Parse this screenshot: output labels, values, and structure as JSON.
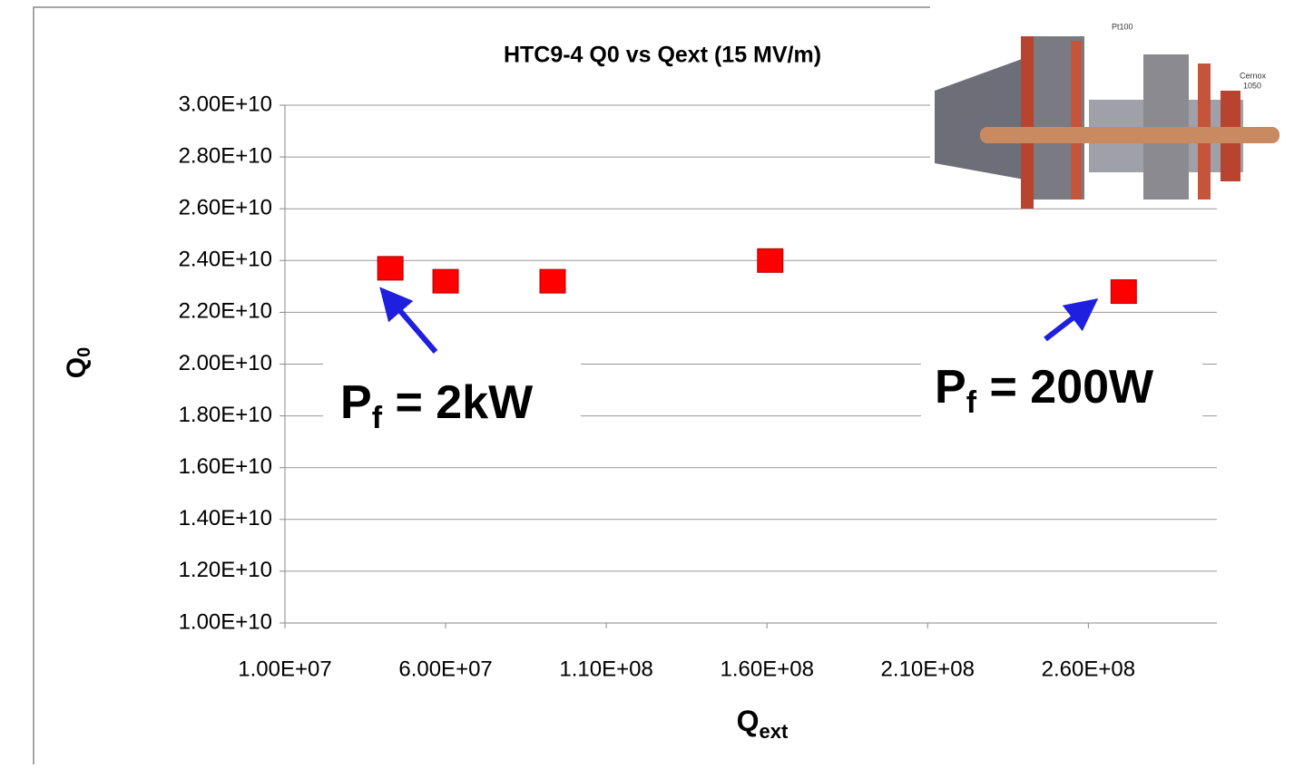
{
  "chart_data": {
    "type": "scatter",
    "title": "HTC9-4 Q0 vs Qext (15 MV/m)",
    "x_label": {
      "main": "Q",
      "sub": "ext"
    },
    "y_label": {
      "main": "Q",
      "sub": "0"
    },
    "x": [
      42800000,
      60000000,
      93300000,
      161000000,
      271000000
    ],
    "series": [
      {
        "color": "#ff0000",
        "values": [
          23700000000,
          23200000000,
          23200000000,
          24000000000,
          22800000000
        ]
      }
    ],
    "xlim": [
      10000000,
      300000000
    ],
    "ylim": [
      10000000000,
      30000000000
    ],
    "xticks": [
      {
        "value": 10000000,
        "label": "1.00E+07"
      },
      {
        "value": 60000000,
        "label": "6.00E+07"
      },
      {
        "value": 110000000,
        "label": "1.10E+08"
      },
      {
        "value": 160000000,
        "label": "1.60E+08"
      },
      {
        "value": 210000000,
        "label": "2.10E+08"
      },
      {
        "value": 260000000,
        "label": "2.60E+08"
      }
    ],
    "yticks": [
      {
        "value": 10000000000,
        "label": "1.00E+10"
      },
      {
        "value": 12000000000,
        "label": "1.20E+10"
      },
      {
        "value": 14000000000,
        "label": "1.40E+10"
      },
      {
        "value": 16000000000,
        "label": "1.60E+10"
      },
      {
        "value": 18000000000,
        "label": "1.80E+10"
      },
      {
        "value": 20000000000,
        "label": "2.00E+10"
      },
      {
        "value": 22000000000,
        "label": "2.20E+10"
      },
      {
        "value": 24000000000,
        "label": "2.40E+10"
      },
      {
        "value": 26000000000,
        "label": "2.60E+10"
      },
      {
        "value": 28000000000,
        "label": "2.80E+10"
      },
      {
        "value": 30000000000,
        "label": "3.00E+10"
      }
    ],
    "grid": true,
    "annotations": [
      {
        "main": "P",
        "sub": "f",
        "rest": " = 2kW"
      },
      {
        "main": "P",
        "sub": "f",
        "rest": " = 200W"
      }
    ],
    "inset_labels": [
      "Pt100",
      "Cernox",
      "1050"
    ]
  }
}
